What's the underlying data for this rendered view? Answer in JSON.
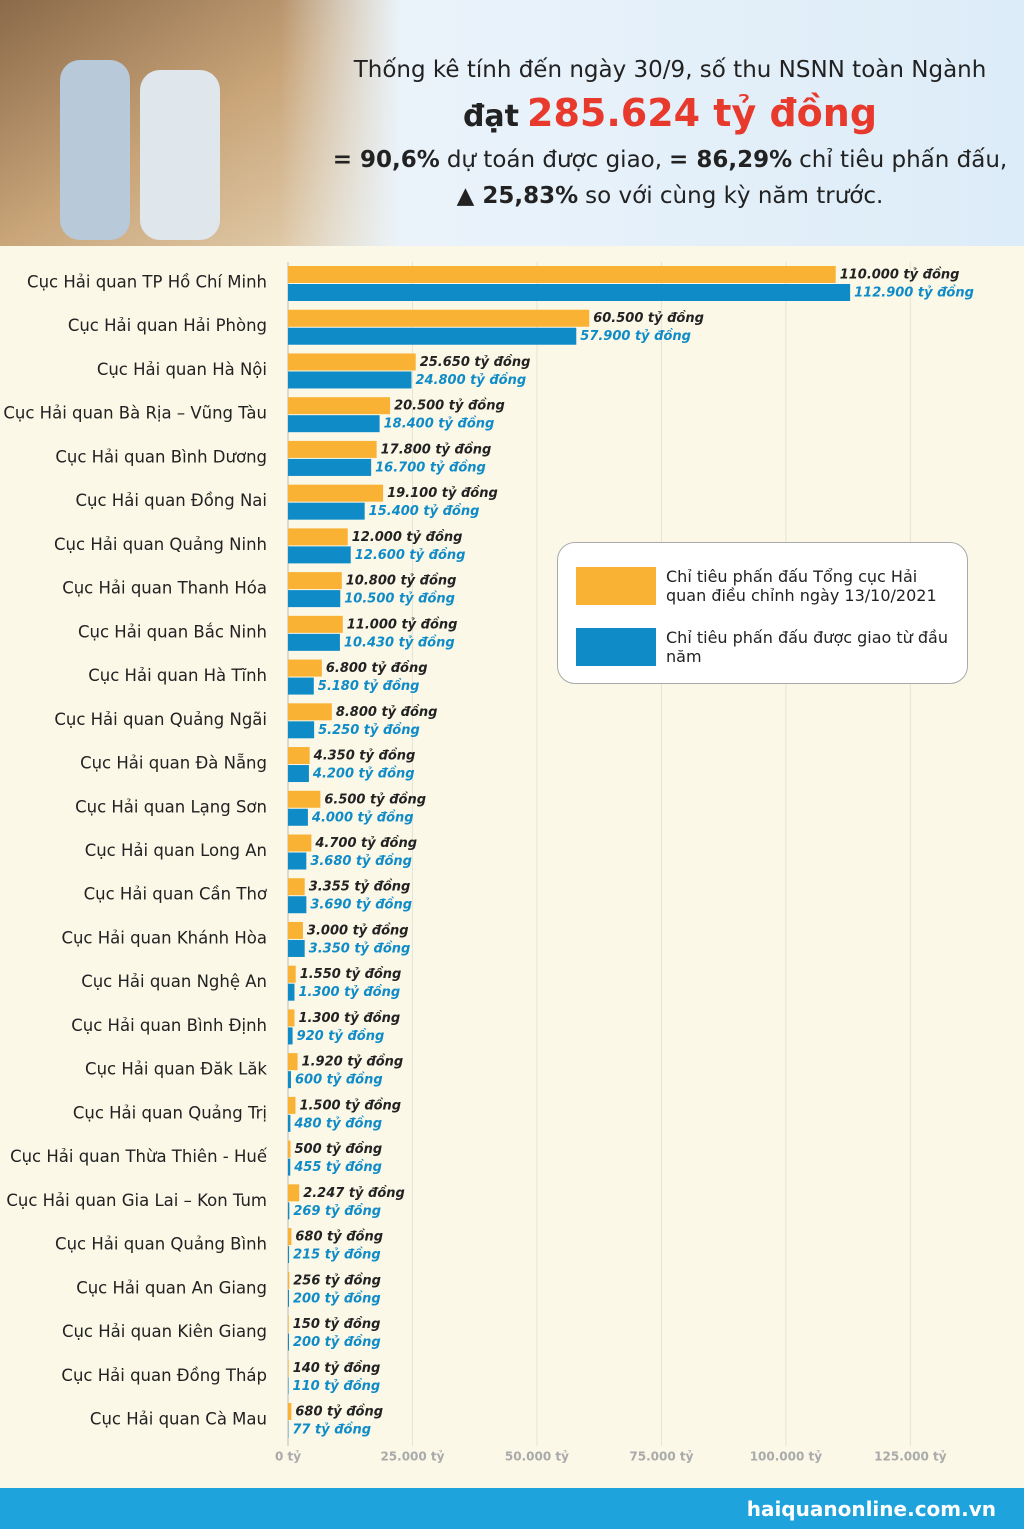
{
  "header": {
    "line1": "Thống kê tính đến ngày 30/9, số thu NSNN toàn Ngành",
    "line2_prefix": "đạt",
    "line2_total": "285.624 tỷ đồng",
    "line3": [
      "= 90,6%",
      "dự toán được giao,",
      "= 86,29%",
      "chỉ tiêu phấn đấu,"
    ],
    "line4": [
      "▲ 25,83%",
      "so với cùng kỳ năm trước."
    ]
  },
  "chart_data": {
    "type": "hbar",
    "categories": [
      "Cục Hải quan TP Hồ Chí Minh",
      "Cục Hải quan Hải Phòng",
      "Cục Hải quan Hà Nội",
      "Cục Hải quan Bà Rịa – Vũng Tàu",
      "Cục Hải quan Bình Dương",
      "Cục Hải quan Đồng Nai",
      "Cục Hải quan Quảng Ninh",
      "Cục Hải quan Thanh Hóa",
      "Cục Hải quan Bắc Ninh",
      "Cục Hải quan Hà Tĩnh",
      "Cục Hải quan Quảng Ngãi",
      "Cục Hải quan Đà Nẵng",
      "Cục Hải quan Lạng Sơn",
      "Cục Hải quan Long An",
      "Cục Hải quan Cần Thơ",
      "Cục Hải quan Khánh Hòa",
      "Cục Hải quan Nghệ An",
      "Cục Hải quan Bình Định",
      "Cục Hải quan Đăk Lăk",
      "Cục Hải quan Quảng Trị",
      "Cục Hải quan Thừa Thiên - Huế",
      "Cục Hải quan Gia Lai – Kon Tum",
      "Cục Hải quan Quảng Bình",
      "Cục Hải quan An Giang",
      "Cục Hải quan Kiên Giang",
      "Cục Hải quan Đồng Tháp",
      "Cục Hải quan Cà Mau"
    ],
    "series": [
      {
        "name": "Chỉ tiêu phấn đấu Tổng cục Hải quan điều chỉnh ngày 13/10/2021",
        "color": "#f9b234",
        "values": [
          110000,
          60500,
          25650,
          20500,
          17800,
          19100,
          12000,
          10800,
          11000,
          6800,
          8800,
          4350,
          6500,
          4700,
          3355,
          3000,
          1550,
          1300,
          1920,
          1500,
          500,
          2247,
          680,
          256,
          150,
          140,
          680
        ],
        "value_labels": [
          "110.000 tỷ đồng",
          "60.500 tỷ đồng",
          "25.650 tỷ đồng",
          "20.500 tỷ đồng",
          "17.800 tỷ đồng",
          "19.100 tỷ đồng",
          "12.000 tỷ đồng",
          "10.800 tỷ đồng",
          "11.000 tỷ đồng",
          "6.800 tỷ đồng",
          "8.800 tỷ đồng",
          "4.350 tỷ đồng",
          "6.500 tỷ đồng",
          "4.700 tỷ đồng",
          "3.355 tỷ đồng",
          "3.000 tỷ đồng",
          "1.550 tỷ đồng",
          "1.300 tỷ đồng",
          "1.920 tỷ đồng",
          "1.500 tỷ đồng",
          "500 tỷ đồng",
          "2.247 tỷ đồng",
          "680 tỷ đồng",
          "256 tỷ đồng",
          "150 tỷ đồng",
          "140 tỷ đồng",
          "680 tỷ đồng"
        ],
        "label_color": "#222222"
      },
      {
        "name": "Chỉ tiêu phấn đấu được giao từ đầu năm",
        "color": "#0f8cc7",
        "values": [
          112900,
          57900,
          24800,
          18400,
          16700,
          15400,
          12600,
          10500,
          10430,
          5180,
          5250,
          4200,
          4000,
          3680,
          3690,
          3350,
          1300,
          920,
          600,
          480,
          455,
          269,
          215,
          200,
          200,
          110,
          77
        ],
        "value_labels": [
          "112.900 tỷ đồng",
          "57.900 tỷ đồng",
          "24.800 tỷ đồng",
          "18.400 tỷ đồng",
          "16.700 tỷ đồng",
          "15.400 tỷ đồng",
          "12.600 tỷ đồng",
          "10.500 tỷ đồng",
          "10.430 tỷ đồng",
          "5.180 tỷ đồng",
          "5.250 tỷ đồng",
          "4.200 tỷ đồng",
          "4.000 tỷ đồng",
          "3.680 tỷ đồng",
          "3.690 tỷ đồng",
          "3.350 tỷ đồng",
          "1.300 tỷ đồng",
          "920 tỷ đồng",
          "600 tỷ đồng",
          "480 tỷ đồng",
          "455 tỷ đồng",
          "269 tỷ đồng",
          "215 tỷ đồng",
          "200 tỷ đồng",
          "200 tỷ đồng",
          "110 tỷ đồng",
          "77 tỷ đồng"
        ],
        "label_color": "#0f8cc7"
      }
    ],
    "xlim": [
      0,
      143000
    ],
    "xticks": [
      {
        "value": 0,
        "label": "0 tỷ"
      },
      {
        "value": 25000,
        "label": "25.000 tỷ"
      },
      {
        "value": 50000,
        "label": "50.000 tỷ"
      },
      {
        "value": 75000,
        "label": "75.000 tỷ"
      },
      {
        "value": 100000,
        "label": "100.000 tỷ"
      },
      {
        "value": 125000,
        "label": "125.000 tỷ"
      }
    ],
    "grid": true
  },
  "footer": {
    "site": "haiquanonline.com.vn"
  }
}
